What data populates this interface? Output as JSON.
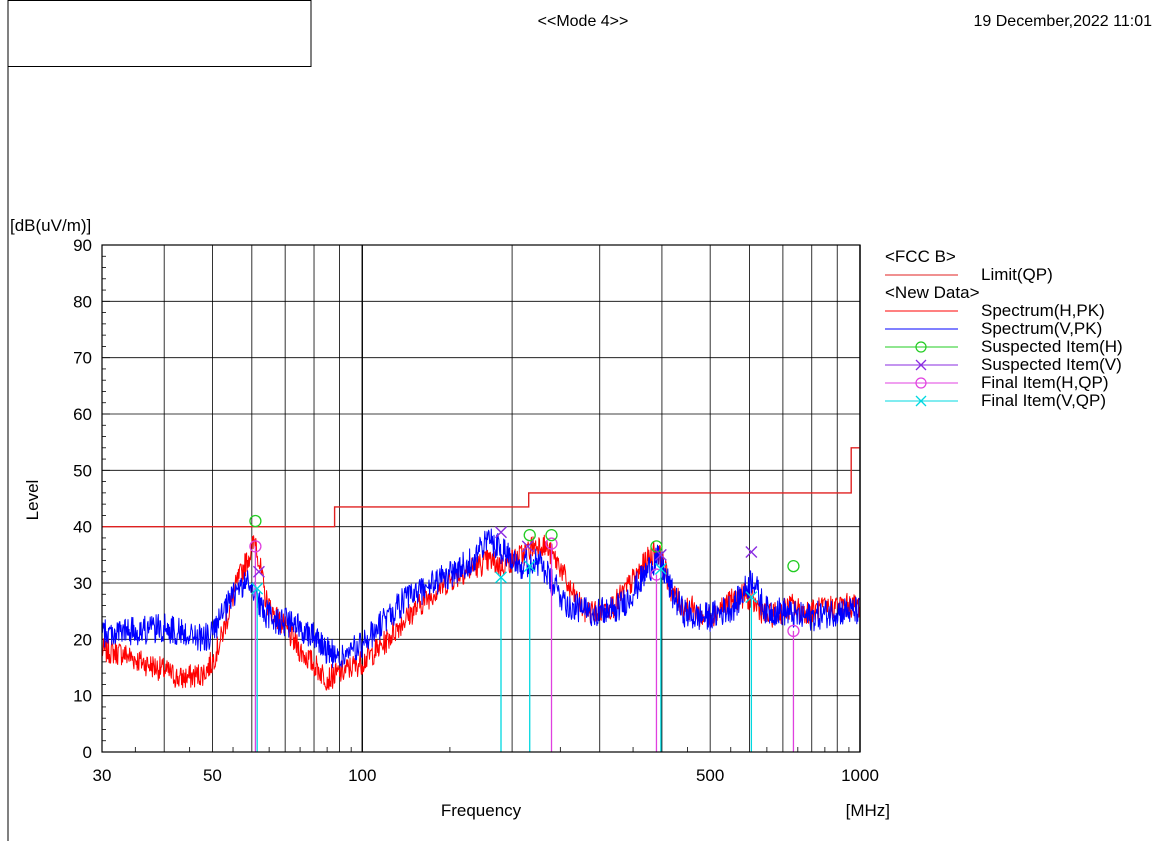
{
  "header": {
    "mode": "<<Mode 4>>",
    "datetime": "19 December,2022 11:01"
  },
  "chart_data": {
    "type": "line",
    "x_scale": "log",
    "xlim": [
      30,
      1000
    ],
    "ylim": [
      0,
      90
    ],
    "x_ticks": [
      30,
      50,
      100,
      500,
      1000
    ],
    "y_ticks": [
      0,
      10,
      20,
      30,
      40,
      50,
      60,
      70,
      80,
      90
    ],
    "x_minor_gridlines": [
      40,
      60,
      70,
      80,
      90,
      200,
      300,
      400,
      600,
      700,
      800,
      900
    ],
    "xlabel": "Frequency",
    "xunit": "[MHz]",
    "ylabel": "Level",
    "yunit": "[dB(uV/m)]",
    "grid": true,
    "legend": {
      "position": "right",
      "groups": [
        {
          "title": "<FCC B>",
          "items": [
            {
              "label": "Limit(QP)",
              "color": "#e02020",
              "marker": "none"
            }
          ]
        },
        {
          "title": "<New Data>",
          "items": [
            {
              "label": "Spectrum(H,PK)",
              "color": "#ff0000",
              "marker": "none"
            },
            {
              "label": "Spectrum(V,PK)",
              "color": "#0000ff",
              "marker": "none"
            },
            {
              "label": "Suspected Item(H)",
              "color": "#22cc22",
              "marker": "circle"
            },
            {
              "label": "Suspected Item(V)",
              "color": "#8a2be2",
              "marker": "x"
            },
            {
              "label": "Final Item(H,QP)",
              "color": "#e040e0",
              "marker": "circle"
            },
            {
              "label": "Final Item(V,QP)",
              "color": "#00d8e0",
              "marker": "x"
            }
          ]
        }
      ]
    },
    "limit": {
      "name": "Limit(QP)",
      "color": "#e02020",
      "steps": [
        {
          "x1": 30,
          "x2": 88,
          "y": 40.0
        },
        {
          "x1": 88,
          "x2": 216,
          "y": 43.5
        },
        {
          "x1": 216,
          "x2": 960,
          "y": 46.0
        },
        {
          "x1": 960,
          "x2": 1000,
          "y": 54.0
        }
      ]
    },
    "series": [
      {
        "name": "Spectrum(H,PK)",
        "color": "#ff0000",
        "noise": 2.2,
        "points": [
          [
            30,
            18
          ],
          [
            33,
            17.5
          ],
          [
            36,
            16
          ],
          [
            40,
            14.5
          ],
          [
            43,
            13
          ],
          [
            46,
            13.5
          ],
          [
            48,
            14
          ],
          [
            50,
            16
          ],
          [
            52,
            20
          ],
          [
            54,
            25
          ],
          [
            56,
            30
          ],
          [
            58,
            33
          ],
          [
            60,
            36
          ],
          [
            61,
            38
          ],
          [
            62,
            34
          ],
          [
            64,
            27
          ],
          [
            67,
            24
          ],
          [
            70,
            22
          ],
          [
            75,
            18
          ],
          [
            80,
            15.5
          ],
          [
            85,
            13
          ],
          [
            90,
            14
          ],
          [
            100,
            16
          ],
          [
            110,
            19
          ],
          [
            120,
            23
          ],
          [
            130,
            26
          ],
          [
            140,
            28.5
          ],
          [
            150,
            30.5
          ],
          [
            160,
            32
          ],
          [
            170,
            33
          ],
          [
            180,
            34
          ],
          [
            190,
            33
          ],
          [
            200,
            34
          ],
          [
            210,
            35
          ],
          [
            220,
            36.5
          ],
          [
            230,
            37
          ],
          [
            240,
            35
          ],
          [
            250,
            33
          ],
          [
            260,
            29
          ],
          [
            280,
            25
          ],
          [
            300,
            25
          ],
          [
            320,
            26
          ],
          [
            340,
            29
          ],
          [
            360,
            32
          ],
          [
            380,
            35
          ],
          [
            390,
            36
          ],
          [
            400,
            34
          ],
          [
            420,
            28
          ],
          [
            440,
            26
          ],
          [
            460,
            25.5
          ],
          [
            480,
            24
          ],
          [
            500,
            24
          ],
          [
            530,
            26
          ],
          [
            560,
            27
          ],
          [
            590,
            28
          ],
          [
            600,
            27
          ],
          [
            620,
            26
          ],
          [
            650,
            24
          ],
          [
            700,
            25
          ],
          [
            730,
            26
          ],
          [
            760,
            25
          ],
          [
            800,
            25
          ],
          [
            850,
            25.5
          ],
          [
            900,
            26
          ],
          [
            950,
            26
          ],
          [
            1000,
            26
          ]
        ]
      },
      {
        "name": "Spectrum(V,PK)",
        "color": "#0000ff",
        "noise": 2.6,
        "points": [
          [
            30,
            21
          ],
          [
            35,
            21.5
          ],
          [
            40,
            22
          ],
          [
            45,
            21
          ],
          [
            48,
            20
          ],
          [
            50,
            21
          ],
          [
            53,
            25
          ],
          [
            56,
            29
          ],
          [
            59,
            30
          ],
          [
            61,
            29
          ],
          [
            62,
            26
          ],
          [
            65,
            24
          ],
          [
            70,
            23
          ],
          [
            75,
            22
          ],
          [
            80,
            21
          ],
          [
            85,
            18
          ],
          [
            90,
            16.5
          ],
          [
            100,
            19
          ],
          [
            110,
            23
          ],
          [
            120,
            26.5
          ],
          [
            130,
            28.5
          ],
          [
            140,
            30
          ],
          [
            150,
            31.5
          ],
          [
            160,
            33
          ],
          [
            170,
            35
          ],
          [
            180,
            38
          ],
          [
            190,
            36
          ],
          [
            200,
            35
          ],
          [
            210,
            33
          ],
          [
            220,
            34
          ],
          [
            230,
            33
          ],
          [
            240,
            30
          ],
          [
            250,
            28
          ],
          [
            260,
            26
          ],
          [
            280,
            25
          ],
          [
            300,
            25
          ],
          [
            320,
            25
          ],
          [
            340,
            27
          ],
          [
            360,
            30
          ],
          [
            380,
            33
          ],
          [
            390,
            34.5
          ],
          [
            400,
            33
          ],
          [
            420,
            28
          ],
          [
            440,
            25
          ],
          [
            460,
            24
          ],
          [
            480,
            24
          ],
          [
            500,
            24
          ],
          [
            530,
            25
          ],
          [
            560,
            26
          ],
          [
            590,
            29
          ],
          [
            610,
            31
          ],
          [
            630,
            27
          ],
          [
            650,
            25
          ],
          [
            700,
            25
          ],
          [
            750,
            24
          ],
          [
            800,
            24
          ],
          [
            850,
            24.5
          ],
          [
            900,
            25
          ],
          [
            1000,
            25
          ]
        ]
      }
    ],
    "suspected_items": [
      {
        "polarization": "H",
        "freq": 61.0,
        "level": 41.0,
        "color": "#22cc22",
        "marker": "circle"
      },
      {
        "polarization": "H",
        "freq": 217.0,
        "level": 38.5,
        "color": "#22cc22",
        "marker": "circle"
      },
      {
        "polarization": "H",
        "freq": 240.0,
        "level": 38.5,
        "color": "#22cc22",
        "marker": "circle"
      },
      {
        "polarization": "H",
        "freq": 390.0,
        "level": 36.5,
        "color": "#22cc22",
        "marker": "circle"
      },
      {
        "polarization": "H",
        "freq": 735.0,
        "level": 33.0,
        "color": "#22cc22",
        "marker": "circle"
      },
      {
        "polarization": "V",
        "freq": 62.0,
        "level": 32.0,
        "color": "#8a2be2",
        "marker": "x"
      },
      {
        "polarization": "V",
        "freq": 190.0,
        "level": 39.0,
        "color": "#8a2be2",
        "marker": "x"
      },
      {
        "polarization": "V",
        "freq": 215.0,
        "level": 36.5,
        "color": "#8a2be2",
        "marker": "x"
      },
      {
        "polarization": "V",
        "freq": 398.0,
        "level": 35.0,
        "color": "#8a2be2",
        "marker": "x"
      },
      {
        "polarization": "V",
        "freq": 605.0,
        "level": 35.5,
        "color": "#8a2be2",
        "marker": "x"
      }
    ],
    "final_items": [
      {
        "polarization": "H",
        "freq": 61.0,
        "level": 36.5,
        "color": "#e040e0",
        "marker": "circle"
      },
      {
        "polarization": "H",
        "freq": 240.0,
        "level": 37.0,
        "color": "#e040e0",
        "marker": "circle"
      },
      {
        "polarization": "H",
        "freq": 390.0,
        "level": 31.5,
        "color": "#e040e0",
        "marker": "circle"
      },
      {
        "polarization": "H",
        "freq": 735.0,
        "level": 21.5,
        "color": "#e040e0",
        "marker": "circle"
      },
      {
        "polarization": "V",
        "freq": 61.5,
        "level": 29.0,
        "color": "#00d8e0",
        "marker": "x"
      },
      {
        "polarization": "V",
        "freq": 190.0,
        "level": 31.0,
        "color": "#00d8e0",
        "marker": "x"
      },
      {
        "polarization": "V",
        "freq": 217.0,
        "level": 33.0,
        "color": "#00d8e0",
        "marker": "x"
      },
      {
        "polarization": "V",
        "freq": 398.0,
        "level": 32.5,
        "color": "#00d8e0",
        "marker": "x"
      },
      {
        "polarization": "V",
        "freq": 605.0,
        "level": 27.5,
        "color": "#00d8e0",
        "marker": "x"
      }
    ]
  }
}
